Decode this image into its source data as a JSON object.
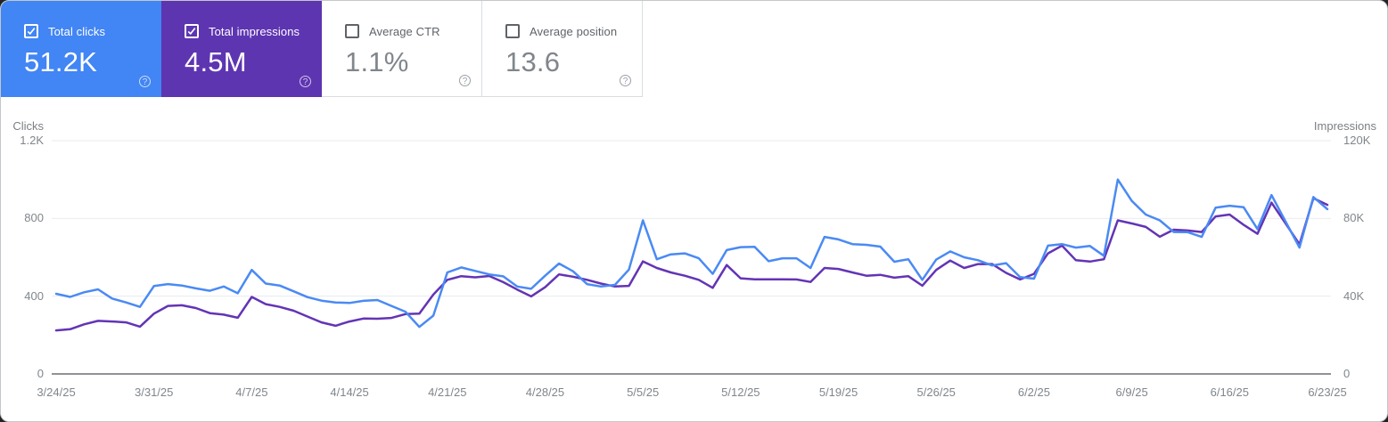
{
  "cards": [
    {
      "label": "Total clicks",
      "value": "51.2K",
      "checked": true,
      "bg": "#4285f4"
    },
    {
      "label": "Total impressions",
      "value": "4.5M",
      "checked": true,
      "bg": "#5e35b1"
    },
    {
      "label": "Average CTR",
      "value": "1.1%",
      "checked": false,
      "bg": "#ffffff"
    },
    {
      "label": "Average position",
      "value": "13.6",
      "checked": false,
      "bg": "#ffffff"
    }
  ],
  "chart_data": {
    "type": "line",
    "legend": "none",
    "grid": "horizontal",
    "left_axis": {
      "label": "Clicks",
      "max": 1200,
      "tick_labels": [
        "1.2K",
        "800",
        "400",
        "0"
      ]
    },
    "right_axis": {
      "label": "Impressions",
      "max": 120000,
      "tick_labels": [
        "120K",
        "80K",
        "40K",
        "0"
      ]
    },
    "x_tick_labels": [
      "3/24/25",
      "3/31/25",
      "4/7/25",
      "4/14/25",
      "4/21/25",
      "4/28/25",
      "5/5/25",
      "5/12/25",
      "5/19/25",
      "5/26/25",
      "6/2/25",
      "6/9/25",
      "6/16/25",
      "6/23/25"
    ],
    "series": [
      {
        "name": "Total clicks",
        "axis": "left",
        "color": "#4a8af4",
        "values": [
          412,
          396,
          420,
          435,
          388,
          368,
          345,
          452,
          462,
          455,
          440,
          428,
          450,
          415,
          535,
          465,
          455,
          425,
          395,
          377,
          368,
          365,
          376,
          380,
          350,
          320,
          242,
          300,
          522,
          548,
          530,
          512,
          502,
          450,
          438,
          505,
          568,
          528,
          462,
          450,
          458,
          537,
          790,
          590,
          615,
          620,
          595,
          515,
          637,
          652,
          654,
          580,
          595,
          595,
          545,
          705,
          692,
          668,
          664,
          655,
          577,
          590,
          484,
          588,
          630,
          600,
          585,
          558,
          570,
          498,
          490,
          660,
          668,
          650,
          658,
          608,
          1000,
          890,
          820,
          790,
          730,
          729,
          705,
          855,
          865,
          858,
          745,
          920,
          785,
          650,
          910,
          848
        ]
      },
      {
        "name": "Total impressions",
        "axis": "right",
        "color": "#6334b5",
        "values": [
          22400,
          23000,
          25500,
          27300,
          27000,
          26500,
          24300,
          31000,
          35000,
          35300,
          33900,
          31300,
          30500,
          28900,
          39600,
          35900,
          34500,
          32500,
          29500,
          26500,
          24800,
          27000,
          28500,
          28400,
          28800,
          30800,
          31000,
          40800,
          48400,
          50300,
          49700,
          50400,
          47200,
          43400,
          39900,
          44600,
          51200,
          50000,
          48400,
          46500,
          45000,
          45300,
          57900,
          54500,
          52200,
          50500,
          48400,
          44300,
          56000,
          49200,
          48700,
          48700,
          48700,
          48600,
          47300,
          54500,
          54000,
          52200,
          50500,
          51000,
          49500,
          50300,
          45400,
          53500,
          58300,
          54500,
          56500,
          56500,
          52000,
          48600,
          51500,
          62000,
          66000,
          58500,
          57800,
          59000,
          79000,
          77400,
          75600,
          70600,
          74200,
          73800,
          73000,
          81000,
          82000,
          76700,
          72100,
          88100,
          77500,
          66700,
          90400,
          87000
        ]
      }
    ]
  }
}
